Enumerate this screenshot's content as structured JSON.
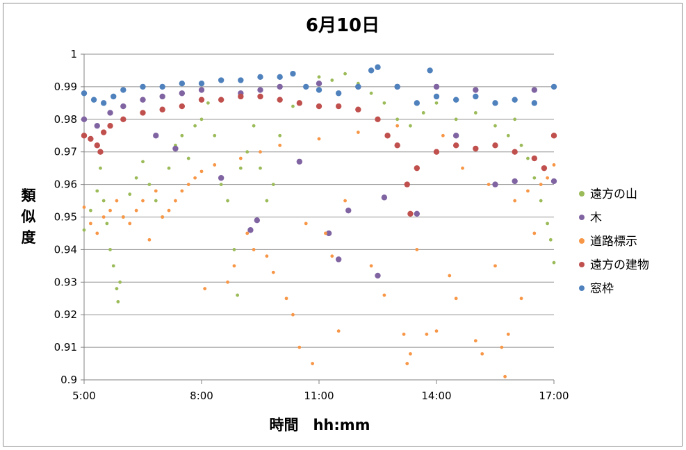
{
  "chart_data": {
    "type": "scatter",
    "title": "6月10日",
    "xlabel": "時間　hh:mm",
    "ylabel": "類似度",
    "xlim": [
      "5:00",
      "17:00"
    ],
    "ylim": [
      0.9,
      1.0
    ],
    "x_ticks": [
      "5:00",
      "8:00",
      "11:00",
      "14:00",
      "17:00"
    ],
    "y_ticks": [
      "0.9",
      "0.91",
      "0.92",
      "0.93",
      "0.94",
      "0.95",
      "0.96",
      "0.97",
      "0.98",
      "0.99",
      "1"
    ],
    "grid": true,
    "legend_position": "right",
    "series": [
      {
        "name": "遠方の山",
        "color": "#9bbb59",
        "points": [
          [
            "5:00",
            0.946
          ],
          [
            "5:10",
            0.952
          ],
          [
            "5:20",
            0.958
          ],
          [
            "5:25",
            0.965
          ],
          [
            "5:30",
            0.955
          ],
          [
            "5:35",
            0.948
          ],
          [
            "5:40",
            0.94
          ],
          [
            "5:45",
            0.935
          ],
          [
            "5:50",
            0.928
          ],
          [
            "5:52",
            0.924
          ],
          [
            "5:55",
            0.93
          ],
          [
            "6:00",
            0.95
          ],
          [
            "6:10",
            0.957
          ],
          [
            "6:20",
            0.962
          ],
          [
            "6:30",
            0.967
          ],
          [
            "6:40",
            0.96
          ],
          [
            "6:50",
            0.955
          ],
          [
            "7:00",
            0.95
          ],
          [
            "7:10",
            0.965
          ],
          [
            "7:20",
            0.972
          ],
          [
            "7:30",
            0.975
          ],
          [
            "7:40",
            0.968
          ],
          [
            "7:50",
            0.978
          ],
          [
            "8:00",
            0.98
          ],
          [
            "8:10",
            0.985
          ],
          [
            "8:20",
            0.975
          ],
          [
            "8:30",
            0.96
          ],
          [
            "8:40",
            0.955
          ],
          [
            "8:50",
            0.94
          ],
          [
            "8:55",
            0.926
          ],
          [
            "9:00",
            0.965
          ],
          [
            "9:10",
            0.97
          ],
          [
            "9:20",
            0.978
          ],
          [
            "9:30",
            0.965
          ],
          [
            "9:40",
            0.955
          ],
          [
            "9:50",
            0.96
          ],
          [
            "10:00",
            0.975
          ],
          [
            "10:20",
            0.984
          ],
          [
            "10:40",
            0.99
          ],
          [
            "11:00",
            0.993
          ],
          [
            "11:20",
            0.992
          ],
          [
            "11:40",
            0.994
          ],
          [
            "12:00",
            0.991
          ],
          [
            "12:20",
            0.988
          ],
          [
            "12:40",
            0.985
          ],
          [
            "13:00",
            0.98
          ],
          [
            "13:20",
            0.978
          ],
          [
            "13:40",
            0.982
          ],
          [
            "14:00",
            0.985
          ],
          [
            "14:30",
            0.98
          ],
          [
            "15:00",
            0.982
          ],
          [
            "15:30",
            0.978
          ],
          [
            "15:50",
            0.975
          ],
          [
            "16:00",
            0.98
          ],
          [
            "16:10",
            0.972
          ],
          [
            "16:20",
            0.968
          ],
          [
            "16:30",
            0.962
          ],
          [
            "16:40",
            0.955
          ],
          [
            "16:50",
            0.948
          ],
          [
            "16:55",
            0.943
          ],
          [
            "17:00",
            0.936
          ]
        ]
      },
      {
        "name": "木",
        "color": "#8064a2",
        "points": [
          [
            "5:00",
            0.98
          ],
          [
            "5:20",
            0.978
          ],
          [
            "5:40",
            0.982
          ],
          [
            "6:00",
            0.984
          ],
          [
            "6:30",
            0.986
          ],
          [
            "6:50",
            0.975
          ],
          [
            "7:00",
            0.987
          ],
          [
            "7:20",
            0.971
          ],
          [
            "7:30",
            0.988
          ],
          [
            "8:00",
            0.989
          ],
          [
            "8:30",
            0.962
          ],
          [
            "9:00",
            0.988
          ],
          [
            "9:15",
            0.946
          ],
          [
            "9:25",
            0.949
          ],
          [
            "9:30",
            0.989
          ],
          [
            "10:00",
            0.99
          ],
          [
            "10:30",
            0.967
          ],
          [
            "11:00",
            0.991
          ],
          [
            "11:15",
            0.945
          ],
          [
            "11:30",
            0.937
          ],
          [
            "11:45",
            0.952
          ],
          [
            "12:00",
            0.99
          ],
          [
            "12:30",
            0.932
          ],
          [
            "12:40",
            0.956
          ],
          [
            "13:00",
            0.99
          ],
          [
            "13:30",
            0.951
          ],
          [
            "14:00",
            0.99
          ],
          [
            "14:30",
            0.975
          ],
          [
            "15:00",
            0.989
          ],
          [
            "15:30",
            0.96
          ],
          [
            "16:00",
            0.961
          ],
          [
            "16:30",
            0.989
          ],
          [
            "17:00",
            0.961
          ]
        ]
      },
      {
        "name": "道路標示",
        "color": "#f79646",
        "points": [
          [
            "5:00",
            0.953
          ],
          [
            "5:10",
            0.948
          ],
          [
            "5:20",
            0.945
          ],
          [
            "5:30",
            0.95
          ],
          [
            "5:40",
            0.952
          ],
          [
            "5:50",
            0.955
          ],
          [
            "6:00",
            0.95
          ],
          [
            "6:10",
            0.948
          ],
          [
            "6:20",
            0.952
          ],
          [
            "6:30",
            0.955
          ],
          [
            "6:40",
            0.943
          ],
          [
            "6:50",
            0.958
          ],
          [
            "7:00",
            0.95
          ],
          [
            "7:10",
            0.952
          ],
          [
            "7:20",
            0.955
          ],
          [
            "7:30",
            0.958
          ],
          [
            "7:40",
            0.96
          ],
          [
            "7:50",
            0.962
          ],
          [
            "8:00",
            0.964
          ],
          [
            "8:05",
            0.928
          ],
          [
            "8:20",
            0.966
          ],
          [
            "8:40",
            0.93
          ],
          [
            "8:50",
            0.935
          ],
          [
            "9:00",
            0.968
          ],
          [
            "9:10",
            0.945
          ],
          [
            "9:20",
            0.94
          ],
          [
            "9:30",
            0.97
          ],
          [
            "9:40",
            0.938
          ],
          [
            "9:50",
            0.933
          ],
          [
            "10:00",
            0.972
          ],
          [
            "10:10",
            0.925
          ],
          [
            "10:20",
            0.92
          ],
          [
            "10:30",
            0.91
          ],
          [
            "10:40",
            0.948
          ],
          [
            "10:50",
            0.905
          ],
          [
            "11:00",
            0.974
          ],
          [
            "11:10",
            0.945
          ],
          [
            "11:20",
            0.938
          ],
          [
            "11:30",
            0.915
          ],
          [
            "11:40",
            0.955
          ],
          [
            "12:00",
            0.976
          ],
          [
            "12:20",
            0.935
          ],
          [
            "12:40",
            0.926
          ],
          [
            "13:00",
            0.978
          ],
          [
            "13:10",
            0.914
          ],
          [
            "13:15",
            0.905
          ],
          [
            "13:20",
            0.908
          ],
          [
            "13:30",
            0.94
          ],
          [
            "13:45",
            0.914
          ],
          [
            "14:00",
            0.915
          ],
          [
            "14:10",
            0.975
          ],
          [
            "14:20",
            0.932
          ],
          [
            "14:30",
            0.925
          ],
          [
            "14:40",
            0.965
          ],
          [
            "15:00",
            0.912
          ],
          [
            "15:10",
            0.908
          ],
          [
            "15:20",
            0.96
          ],
          [
            "15:30",
            0.935
          ],
          [
            "15:40",
            0.91
          ],
          [
            "15:45",
            0.901
          ],
          [
            "15:50",
            0.914
          ],
          [
            "16:00",
            0.955
          ],
          [
            "16:10",
            0.925
          ],
          [
            "16:20",
            0.958
          ],
          [
            "16:30",
            0.945
          ],
          [
            "16:40",
            0.96
          ],
          [
            "16:50",
            0.962
          ],
          [
            "17:00",
            0.966
          ]
        ]
      },
      {
        "name": "遠方の建物",
        "color": "#c0504d",
        "points": [
          [
            "5:00",
            0.975
          ],
          [
            "5:10",
            0.974
          ],
          [
            "5:20",
            0.972
          ],
          [
            "5:25",
            0.97
          ],
          [
            "5:30",
            0.976
          ],
          [
            "5:40",
            0.978
          ],
          [
            "6:00",
            0.98
          ],
          [
            "6:30",
            0.982
          ],
          [
            "7:00",
            0.983
          ],
          [
            "7:30",
            0.984
          ],
          [
            "8:00",
            0.986
          ],
          [
            "8:30",
            0.986
          ],
          [
            "9:00",
            0.987
          ],
          [
            "9:30",
            0.987
          ],
          [
            "10:00",
            0.986
          ],
          [
            "10:30",
            0.985
          ],
          [
            "11:00",
            0.984
          ],
          [
            "11:30",
            0.984
          ],
          [
            "12:00",
            0.983
          ],
          [
            "12:30",
            0.98
          ],
          [
            "12:45",
            0.975
          ],
          [
            "13:00",
            0.972
          ],
          [
            "13:15",
            0.96
          ],
          [
            "13:20",
            0.951
          ],
          [
            "13:30",
            0.965
          ],
          [
            "14:00",
            0.97
          ],
          [
            "14:30",
            0.972
          ],
          [
            "15:00",
            0.971
          ],
          [
            "15:30",
            0.972
          ],
          [
            "16:00",
            0.97
          ],
          [
            "16:30",
            0.968
          ],
          [
            "16:45",
            0.965
          ],
          [
            "17:00",
            0.975
          ]
        ]
      },
      {
        "name": "窓枠",
        "color": "#4f81bd",
        "points": [
          [
            "5:00",
            0.988
          ],
          [
            "5:15",
            0.986
          ],
          [
            "5:30",
            0.985
          ],
          [
            "5:45",
            0.987
          ],
          [
            "6:00",
            0.989
          ],
          [
            "6:30",
            0.99
          ],
          [
            "7:00",
            0.99
          ],
          [
            "7:30",
            0.991
          ],
          [
            "8:00",
            0.991
          ],
          [
            "8:30",
            0.992
          ],
          [
            "9:00",
            0.992
          ],
          [
            "9:30",
            0.993
          ],
          [
            "10:00",
            0.993
          ],
          [
            "10:20",
            0.994
          ],
          [
            "10:40",
            0.99
          ],
          [
            "11:00",
            0.989
          ],
          [
            "11:30",
            0.988
          ],
          [
            "12:00",
            0.99
          ],
          [
            "12:20",
            0.995
          ],
          [
            "12:30",
            0.996
          ],
          [
            "13:00",
            0.99
          ],
          [
            "13:30",
            0.985
          ],
          [
            "13:50",
            0.995
          ],
          [
            "14:00",
            0.987
          ],
          [
            "14:30",
            0.986
          ],
          [
            "15:00",
            0.987
          ],
          [
            "15:30",
            0.985
          ],
          [
            "16:00",
            0.986
          ],
          [
            "16:30",
            0.985
          ],
          [
            "17:00",
            0.99
          ]
        ]
      }
    ]
  }
}
